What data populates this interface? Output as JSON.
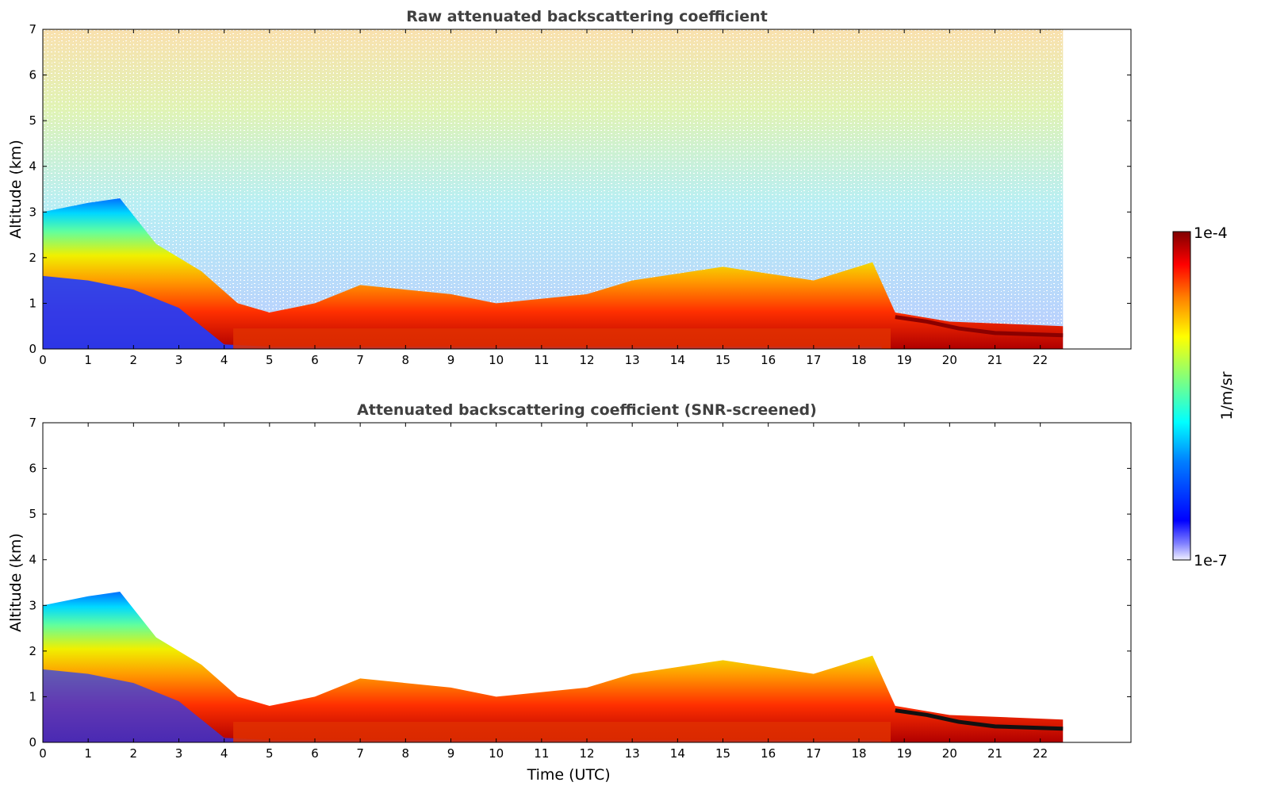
{
  "chart_data": [
    {
      "type": "heatmap",
      "title": "Raw attenuated backscattering coefficient",
      "xlabel": "",
      "ylabel": "Altitude (km)",
      "xlim": [
        0,
        24
      ],
      "ylim": [
        0,
        7
      ],
      "xticks": [
        "0",
        "1",
        "2",
        "3",
        "4",
        "5",
        "6",
        "7",
        "8",
        "9",
        "10",
        "11",
        "12",
        "13",
        "14",
        "15",
        "16",
        "17",
        "18",
        "19",
        "20",
        "21",
        "22"
      ],
      "yticks": [
        "0",
        "1",
        "2",
        "3",
        "4",
        "5",
        "6",
        "7"
      ],
      "data_extent_hours": [
        0,
        22.5
      ],
      "boundary_layer_top_km": [
        [
          0,
          1.6
        ],
        [
          1,
          1.5
        ],
        [
          2,
          1.3
        ],
        [
          3,
          0.9
        ],
        [
          4,
          0.1
        ],
        [
          5,
          0.05
        ],
        [
          7,
          0.05
        ],
        [
          10,
          0.05
        ],
        [
          15,
          0.05
        ],
        [
          18.5,
          0.05
        ]
      ],
      "aerosol_layer_top_km": [
        [
          0,
          3.0
        ],
        [
          1,
          3.2
        ],
        [
          1.7,
          3.3
        ],
        [
          2.5,
          2.3
        ],
        [
          3.5,
          1.7
        ],
        [
          4.3,
          1.0
        ],
        [
          5,
          0.8
        ],
        [
          6,
          1.0
        ],
        [
          7,
          1.4
        ],
        [
          9,
          1.2
        ],
        [
          10,
          1.0
        ],
        [
          12,
          1.2
        ],
        [
          13,
          1.5
        ],
        [
          15,
          1.8
        ],
        [
          17,
          1.5
        ],
        [
          18.3,
          1.9
        ],
        [
          18.8,
          0.8
        ],
        [
          20,
          0.6
        ],
        [
          22.5,
          0.5
        ]
      ],
      "cloud_layer_km": [
        [
          18.8,
          0.7
        ],
        [
          19.5,
          0.6
        ],
        [
          20.2,
          0.45
        ],
        [
          21,
          0.35
        ],
        [
          22.5,
          0.3
        ]
      ],
      "colorbar": {
        "label": "1/m/sr",
        "min": "1e-7",
        "max": "1e-4",
        "scale": "log"
      }
    },
    {
      "type": "heatmap",
      "title": "Attenuated backscattering coefficient (SNR-screened)",
      "xlabel": "Time (UTC)",
      "ylabel": "Altitude (km)",
      "xlim": [
        0,
        24
      ],
      "ylim": [
        0,
        7
      ],
      "xticks": [
        "0",
        "1",
        "2",
        "3",
        "4",
        "5",
        "6",
        "7",
        "8",
        "9",
        "10",
        "11",
        "12",
        "13",
        "14",
        "15",
        "16",
        "17",
        "18",
        "19",
        "20",
        "21",
        "22"
      ],
      "yticks": [
        "0",
        "1",
        "2",
        "3",
        "4",
        "5",
        "6",
        "7"
      ],
      "data_extent_hours": [
        0,
        22.5
      ],
      "colorbar": {
        "label": "1/m/sr",
        "min": "1e-7",
        "max": "1e-4",
        "scale": "log"
      }
    }
  ],
  "colors": {
    "jet": [
      "#00007f",
      "#0000ff",
      "#007fff",
      "#00ffff",
      "#7fff7f",
      "#ffff00",
      "#ff7f00",
      "#ff0000",
      "#7f0000"
    ],
    "title_color": "#404040"
  }
}
